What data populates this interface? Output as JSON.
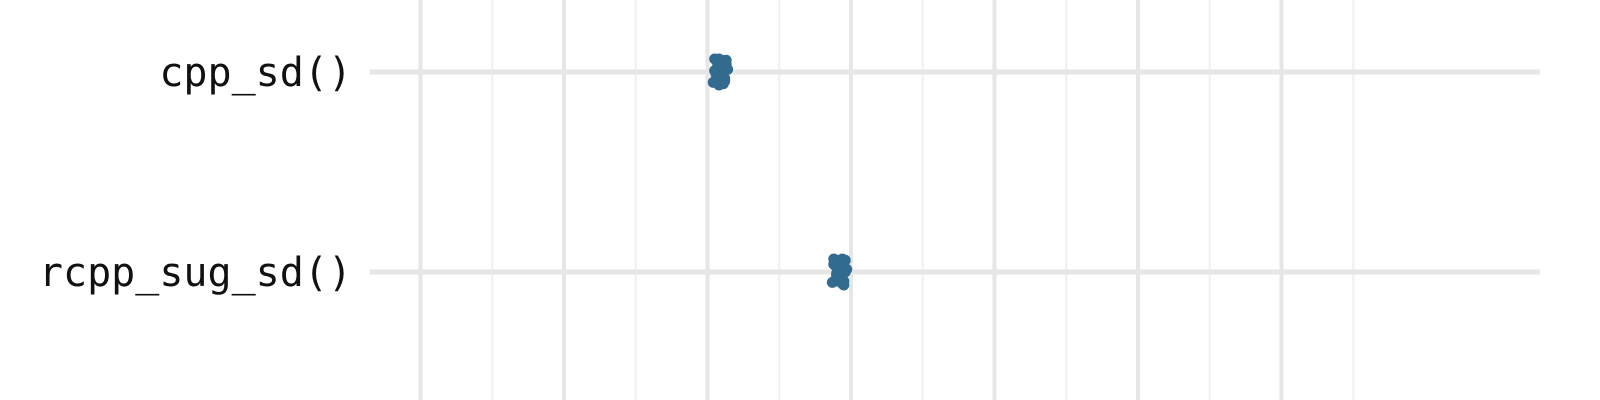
{
  "chart_data": {
    "type": "scatter",
    "orientation": "horizontal",
    "categories": [
      "cpp_sd()",
      "rcpp_sug_sd()"
    ],
    "series": [
      {
        "category": "cpp_sd()",
        "values": [
          3.05,
          3.07,
          3.09,
          3.11,
          3.13,
          3.06,
          3.1,
          3.12,
          3.08,
          3.04,
          3.1,
          3.14,
          3.07,
          3.11,
          3.09,
          3.05,
          3.13,
          3.08,
          3.12,
          3.06,
          3.1,
          3.08,
          3.09,
          3.11,
          3.07,
          3.1,
          3.12,
          3.06,
          3.08,
          3.1
        ]
      },
      {
        "category": "rcpp_sug_sd()",
        "values": [
          3.88,
          3.9,
          3.92,
          3.94,
          3.96,
          3.89,
          3.91,
          3.93,
          3.95,
          3.87,
          3.9,
          3.97,
          3.92,
          3.94,
          3.9,
          3.93,
          3.88,
          3.95,
          3.91,
          3.96,
          3.89,
          3.94,
          3.92,
          3.9,
          3.93,
          3.91,
          3.95,
          3.9,
          3.92,
          3.94
        ]
      }
    ],
    "xlim": [
      0,
      7.8
    ],
    "grid": true,
    "point_color": "#336b8f",
    "grid_major_color": "#e6e6e6",
    "grid_minor_color": "#f0f0f0"
  }
}
